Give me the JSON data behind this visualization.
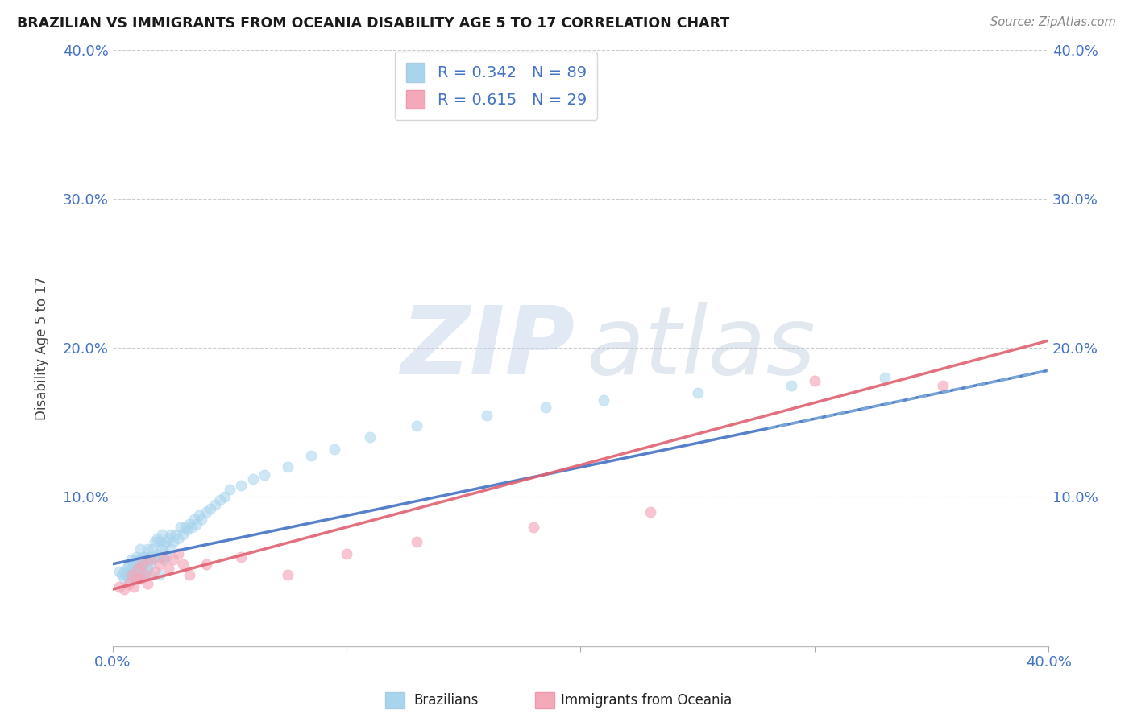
{
  "title": "BRAZILIAN VS IMMIGRANTS FROM OCEANIA DISABILITY AGE 5 TO 17 CORRELATION CHART",
  "source": "Source: ZipAtlas.com",
  "ylabel": "Disability Age 5 to 17",
  "xmin": 0.0,
  "xmax": 0.4,
  "ymin": 0.0,
  "ymax": 0.4,
  "xtick_positions": [
    0.0,
    0.1,
    0.2,
    0.3,
    0.4
  ],
  "xtick_labels": [
    "0.0%",
    "",
    "",
    "",
    "40.0%"
  ],
  "ytick_positions": [
    0.0,
    0.1,
    0.2,
    0.3,
    0.4
  ],
  "ytick_labels": [
    "",
    "10.0%",
    "20.0%",
    "30.0%",
    "40.0%"
  ],
  "legend_r1": "R = 0.342   N = 89",
  "legend_r2": "R = 0.615   N = 29",
  "color_brazilian": "#A8D4ED",
  "color_oceania": "#F4A8BA",
  "color_line_brazilian": "#4472C4",
  "color_line_oceania": "#E06070",
  "background_color": "#ffffff",
  "tick_color": "#4472C4",
  "watermark_zip_color": "#C8D8EC",
  "watermark_atlas_color": "#C0CEDC",
  "grid_color": "#CCCCCC",
  "legend_label_1": "Brazilians",
  "legend_label_2": "Immigrants from Oceania",
  "brazilian_x": [
    0.003,
    0.004,
    0.005,
    0.005,
    0.006,
    0.006,
    0.007,
    0.007,
    0.007,
    0.008,
    0.008,
    0.008,
    0.009,
    0.009,
    0.009,
    0.01,
    0.01,
    0.01,
    0.01,
    0.011,
    0.011,
    0.011,
    0.012,
    0.012,
    0.012,
    0.012,
    0.013,
    0.013,
    0.013,
    0.014,
    0.014,
    0.014,
    0.015,
    0.015,
    0.015,
    0.016,
    0.016,
    0.016,
    0.017,
    0.017,
    0.018,
    0.018,
    0.019,
    0.019,
    0.02,
    0.02,
    0.02,
    0.021,
    0.021,
    0.022,
    0.022,
    0.023,
    0.023,
    0.024,
    0.025,
    0.025,
    0.026,
    0.027,
    0.028,
    0.029,
    0.03,
    0.031,
    0.032,
    0.033,
    0.034,
    0.035,
    0.036,
    0.037,
    0.038,
    0.04,
    0.042,
    0.044,
    0.046,
    0.048,
    0.05,
    0.055,
    0.06,
    0.065,
    0.075,
    0.085,
    0.095,
    0.11,
    0.13,
    0.16,
    0.185,
    0.21,
    0.25,
    0.29,
    0.33
  ],
  "brazilian_y": [
    0.05,
    0.048,
    0.05,
    0.045,
    0.052,
    0.048,
    0.05,
    0.055,
    0.045,
    0.052,
    0.058,
    0.048,
    0.05,
    0.055,
    0.045,
    0.052,
    0.058,
    0.048,
    0.06,
    0.05,
    0.055,
    0.045,
    0.052,
    0.058,
    0.065,
    0.048,
    0.055,
    0.06,
    0.048,
    0.055,
    0.06,
    0.048,
    0.052,
    0.058,
    0.065,
    0.055,
    0.06,
    0.048,
    0.058,
    0.065,
    0.06,
    0.07,
    0.062,
    0.072,
    0.06,
    0.07,
    0.048,
    0.065,
    0.075,
    0.068,
    0.058,
    0.07,
    0.06,
    0.072,
    0.065,
    0.075,
    0.07,
    0.075,
    0.072,
    0.08,
    0.075,
    0.08,
    0.078,
    0.082,
    0.08,
    0.085,
    0.082,
    0.088,
    0.085,
    0.09,
    0.092,
    0.095,
    0.098,
    0.1,
    0.105,
    0.108,
    0.112,
    0.115,
    0.12,
    0.128,
    0.132,
    0.14,
    0.148,
    0.155,
    0.16,
    0.165,
    0.17,
    0.175,
    0.18
  ],
  "oceania_x": [
    0.003,
    0.005,
    0.007,
    0.008,
    0.009,
    0.01,
    0.011,
    0.012,
    0.013,
    0.014,
    0.015,
    0.016,
    0.018,
    0.02,
    0.022,
    0.024,
    0.026,
    0.028,
    0.03,
    0.033,
    0.04,
    0.055,
    0.075,
    0.1,
    0.13,
    0.18,
    0.23,
    0.3,
    0.355
  ],
  "oceania_y": [
    0.04,
    0.038,
    0.042,
    0.048,
    0.04,
    0.045,
    0.052,
    0.045,
    0.055,
    0.048,
    0.042,
    0.058,
    0.05,
    0.055,
    0.06,
    0.052,
    0.058,
    0.062,
    0.055,
    0.048,
    0.055,
    0.06,
    0.048,
    0.062,
    0.07,
    0.08,
    0.09,
    0.178,
    0.175
  ]
}
